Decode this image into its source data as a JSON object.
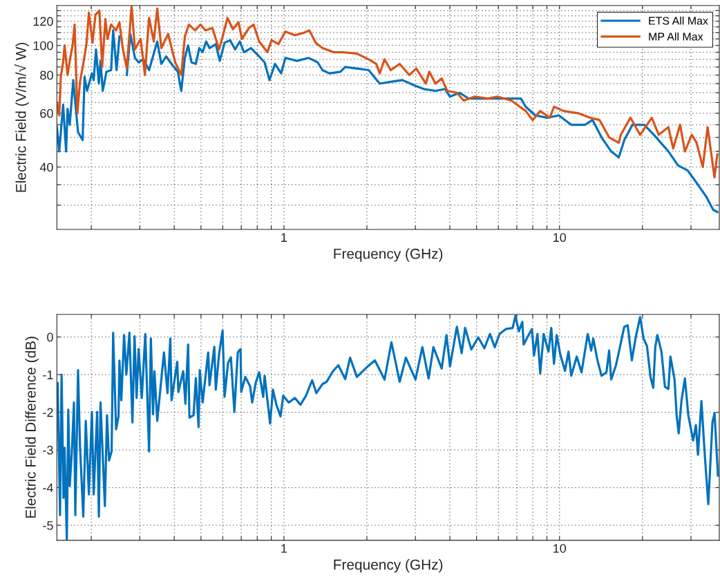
{
  "chart_data": [
    {
      "type": "line",
      "xlabel": "Frequency (GHz)",
      "ylabel": "Electric Field (V/m/√ W)",
      "log": "xy",
      "grid": true,
      "legend": "top right",
      "xlim": [
        0.15,
        38
      ],
      "ylim": [
        25,
        135
      ],
      "xticks": [
        {
          "value": 0.2,
          "label": null
        },
        {
          "value": 0.3,
          "label": null
        },
        {
          "value": 0.4,
          "label": null
        },
        {
          "value": 0.5,
          "label": null
        },
        {
          "value": 0.6,
          "label": null
        },
        {
          "value": 0.7,
          "label": null
        },
        {
          "value": 0.8,
          "label": null
        },
        {
          "value": 0.9,
          "label": null
        },
        1,
        {
          "value": 2,
          "label": null
        },
        {
          "value": 3,
          "label": null
        },
        {
          "value": 4,
          "label": null
        },
        {
          "value": 5,
          "label": null
        },
        {
          "value": 6,
          "label": null
        },
        {
          "value": 7,
          "label": null
        },
        {
          "value": 8,
          "label": null
        },
        {
          "value": 9,
          "label": null
        },
        10,
        {
          "value": 20,
          "label": null
        },
        {
          "value": 30,
          "label": null
        }
      ],
      "yticks": [
        {
          "value": 30,
          "label": null
        },
        {
          "value": 35,
          "label": null
        },
        40,
        {
          "value": 45,
          "label": null
        },
        {
          "value": 50,
          "label": null
        },
        {
          "value": 55,
          "label": null
        },
        60,
        {
          "value": 65,
          "label": null
        },
        {
          "value": 70,
          "label": null
        },
        {
          "value": 75,
          "label": null
        },
        80,
        {
          "value": 85,
          "label": null
        },
        {
          "value": 90,
          "label": null
        },
        {
          "value": 95,
          "label": null
        },
        100,
        {
          "value": 105,
          "label": null
        },
        {
          "value": 110,
          "label": null
        },
        {
          "value": 115,
          "label": null
        },
        120,
        {
          "value": 125,
          "label": null
        },
        {
          "value": 130,
          "label": null
        }
      ],
      "series": [
        {
          "name": "ETS All Max",
          "color": "#0072bd",
          "x": [
            0.15,
            0.153,
            0.158,
            0.162,
            0.164,
            0.167,
            0.172,
            0.179,
            0.186,
            0.189,
            0.193,
            0.201,
            0.204,
            0.208,
            0.213,
            0.216,
            0.22,
            0.227,
            0.236,
            0.24,
            0.247,
            0.253,
            0.262,
            0.269,
            0.277,
            0.288,
            0.297,
            0.309,
            0.324,
            0.347,
            0.359,
            0.374,
            0.391,
            0.412,
            0.424,
            0.437,
            0.449,
            0.462,
            0.479,
            0.493,
            0.507,
            0.522,
            0.537,
            0.566,
            0.585,
            0.609,
            0.638,
            0.665,
            0.692,
            0.716,
            0.759,
            0.804,
            0.851,
            0.886,
            0.928,
            0.977,
            1.012,
            1.116,
            1.23,
            1.326,
            1.38,
            1.463,
            1.603,
            1.669,
            1.84,
            2.03,
            2.226,
            2.441,
            2.692,
            2.968,
            3.217,
            3.548,
            3.846,
            4.004,
            4.34,
            4.677,
            5.496,
            6.42,
            7.244,
            7.542,
            8.175,
            9.016,
            9.943,
            11.03,
            12.37,
            13.18,
            14.21,
            15.4,
            16.41,
            17.18,
            18.4,
            20.3,
            22.0,
            24.84,
            26.92,
            29.17,
            31.44,
            34.08,
            36.1,
            37.37
          ],
          "values": [
            54,
            45,
            64,
            45,
            62,
            55,
            77,
            52,
            49,
            79,
            71,
            81,
            77,
            97,
            75,
            89,
            71,
            82,
            83,
            112,
            83,
            107,
            null,
            80,
            109,
            91,
            88,
            90,
            83,
            103,
            87,
            92,
            87,
            82,
            71,
            91,
            100,
            88,
            87,
            98,
            95,
            103,
            98,
            101,
            89,
            102,
            104,
            97,
            103,
            95,
            98,
            93,
            88,
            77,
            87,
            81,
            91,
            89,
            91,
            88,
            83,
            81,
            82,
            85,
            84,
            83,
            75,
            76,
            77,
            74,
            72,
            71,
            72,
            68,
            70,
            67,
            67,
            67,
            67,
            63,
            59,
            58,
            59,
            55,
            55,
            57,
            50,
            45,
            43,
            49,
            55,
            55,
            51,
            45,
            40.5,
            39,
            35.5,
            32,
            29,
            28.5
          ]
        },
        {
          "name": "MP All Max",
          "color": "#d95319",
          "x": [
            0.15,
            0.153,
            0.155,
            0.158,
            0.16,
            0.164,
            0.167,
            0.171,
            0.174,
            0.178,
            0.182,
            0.187,
            0.192,
            0.196,
            0.202,
            0.207,
            0.214,
            0.219,
            0.225,
            0.229,
            0.236,
            0.246,
            0.253,
            0.26,
            0.269,
            0.28,
            0.288,
            0.302,
            0.313,
            0.324,
            0.337,
            0.347,
            0.359,
            0.38,
            0.403,
            0.424,
            0.437,
            0.452,
            0.476,
            0.498,
            0.519,
            0.55,
            0.582,
            0.609,
            0.624,
            0.653,
            0.684,
            0.704,
            0.746,
            0.776,
            0.813,
            0.871,
            0.902,
            0.955,
            1.012,
            1.097,
            1.182,
            1.237,
            1.303,
            1.38,
            1.514,
            1.641,
            1.84,
            2.03,
            2.162,
            2.226,
            2.318,
            2.441,
            2.63,
            2.851,
            3.02,
            3.273,
            3.369,
            3.548,
            3.737,
            3.913,
            4.241,
            4.493,
            4.926,
            5.496,
            5.956,
            6.684,
            7.542,
            7.989,
            8.511,
            9.226,
            9.55,
            10.35,
            11.68,
            12.88,
            13.97,
            15.14,
            16.41,
            16.69,
            18.09,
            19.61,
            21.62,
            22.91,
            24.84,
            25.85,
            27.39,
            28.51,
            30.2,
            31.44,
            33.11,
            34.47,
            36.52,
            37.37
          ],
          "values": [
            65,
            59,
            79,
            88,
            100,
            80,
            89,
            100,
            117,
            60,
            76,
            87,
            101,
            128,
            102,
            126,
            130,
            85,
            122,
            105,
            117,
            112,
            119,
            98,
            84,
            134,
            97,
            105,
            80,
            123,
            103,
            132,
            98,
            109,
            88,
            80,
            107,
            117,
            112,
            117,
            112,
            114,
            97,
            113,
            123,
            113,
            119,
            105,
            114,
            117,
            103,
            95,
            104,
            101,
            111,
            108,
            110,
            112,
            102,
            98,
            95,
            95,
            94,
            90,
            87,
            81,
            90,
            83,
            87,
            80,
            84,
            75,
            82,
            75,
            78,
            71,
            70,
            66,
            68,
            67,
            68,
            66,
            61,
            57,
            61,
            58,
            63,
            61,
            60,
            58,
            57,
            50,
            48,
            51,
            58,
            51,
            58,
            51,
            54,
            46,
            55,
            45,
            51,
            48,
            40,
            54,
            37,
            44
          ]
        }
      ]
    },
    {
      "type": "line",
      "xlabel": "Frequency (GHz)",
      "ylabel": "Electric Field Difference (dB)",
      "log": "x",
      "grid": true,
      "xlim": [
        0.15,
        38
      ],
      "ylim": [
        -5.4,
        0.6
      ],
      "xticks": [
        {
          "value": 0.2,
          "label": null
        },
        {
          "value": 0.3,
          "label": null
        },
        {
          "value": 0.4,
          "label": null
        },
        {
          "value": 0.5,
          "label": null
        },
        {
          "value": 0.6,
          "label": null
        },
        {
          "value": 0.7,
          "label": null
        },
        {
          "value": 0.8,
          "label": null
        },
        {
          "value": 0.9,
          "label": null
        },
        1,
        {
          "value": 2,
          "label": null
        },
        {
          "value": 3,
          "label": null
        },
        {
          "value": 4,
          "label": null
        },
        {
          "value": 5,
          "label": null
        },
        {
          "value": 6,
          "label": null
        },
        {
          "value": 7,
          "label": null
        },
        {
          "value": 8,
          "label": null
        },
        {
          "value": 9,
          "label": null
        },
        10,
        {
          "value": 20,
          "label": null
        },
        {
          "value": 30,
          "label": null
        }
      ],
      "yticks": [
        -5,
        -4,
        -3,
        -2,
        -1,
        0
      ],
      "series": [
        {
          "color": "#0072bd",
          "x": [
            0.15,
            0.151,
            0.154,
            0.156,
            0.1585,
            0.16,
            0.163,
            0.165,
            0.167,
            0.17,
            0.173,
            0.175,
            0.179,
            0.182,
            0.187,
            0.191,
            0.196,
            0.201,
            0.204,
            0.21,
            0.213,
            0.216,
            0.224,
            0.228,
            0.232,
            0.237,
            0.24,
            0.246,
            0.251,
            0.253,
            0.257,
            0.263,
            0.268,
            0.275,
            0.282,
            0.287,
            0.292,
            0.297,
            0.305,
            0.314,
            0.324,
            0.329,
            0.335,
            0.339,
            0.347,
            0.367,
            0.378,
            0.387,
            0.391,
            0.41,
            0.414,
            0.431,
            0.439,
            0.449,
            0.454,
            0.47,
            0.479,
            0.49,
            0.495,
            0.507,
            0.531,
            0.537,
            0.559,
            0.566,
            0.582,
            0.599,
            0.609,
            0.627,
            0.642,
            0.661,
            0.68,
            0.696,
            0.7,
            0.724,
            0.754,
            0.767,
            0.79,
            0.813,
            0.841,
            0.851,
            0.891,
            0.912,
            0.939,
            0.972,
            0.994,
            1.041,
            1.097,
            1.148,
            1.202,
            1.266,
            1.311,
            1.38,
            1.429,
            1.505,
            1.576,
            1.669,
            1.738,
            1.84,
            1.995,
            2.138,
            2.318,
            2.455,
            2.63,
            2.77,
            3.002,
            3.18,
            3.35,
            3.487,
            3.737,
            3.89,
            4.004,
            4.241,
            4.416,
            4.545,
            4.786,
            5.07,
            5.34,
            5.591,
            5.82,
            6.06,
            6.383,
            6.761,
            6.919,
            7.12,
            7.328,
            7.413,
            7.718,
            7.943,
            8.081,
            8.317,
            8.511,
            8.76,
            9.121,
            9.333,
            9.55,
            9.773,
            10.06,
            10.47,
            10.78,
            11.03,
            11.55,
            12.02,
            12.66,
            13.03,
            13.26,
            13.73,
            14.21,
            14.8,
            15.14,
            15.4,
            16.03,
            16.5,
            17.18,
            17.68,
            18.3,
            18.94,
            19.61,
            20.18,
            20.77,
            21.38,
            21.88,
            22.26,
            22.65,
            23.44,
            24.13,
            24.84,
            25.27,
            26.15,
            26.61,
            27.07,
            27.7,
            28.51,
            29.34,
            30.54,
            31.26,
            31.8,
            32.73,
            33.69,
            34.67,
            35.89,
            36.52,
            37.58
          ],
          "values": [
            -1.59,
            -1.22,
            -4.73,
            -1.0,
            -4.27,
            -2.94,
            -5.4,
            -1.93,
            -3.96,
            -3.04,
            -1.74,
            -4.73,
            -0.88,
            -2.91,
            -4.77,
            -2.23,
            -4.18,
            -1.99,
            -4.18,
            -1.99,
            -4.77,
            -1.74,
            -4.49,
            -2.08,
            -3.28,
            -3.04,
            0.11,
            -2.45,
            -2.11,
            -0.63,
            -1.68,
            0.05,
            -1.0,
            0.11,
            -2.27,
            0.02,
            -1.62,
            -0.32,
            -1.62,
            0.08,
            -3.04,
            -0.04,
            -2.05,
            -0.91,
            -2.23,
            -0.41,
            -1.49,
            -0.04,
            -1.68,
            -0.66,
            -1.46,
            -0.91,
            -1.77,
            -0.2,
            -2.14,
            -2.08,
            -1.09,
            -2.39,
            -0.88,
            -1.74,
            -0.41,
            -1.28,
            -0.26,
            -1.4,
            -0.44,
            0.17,
            -1.59,
            -0.69,
            -0.54,
            -1.99,
            -0.41,
            -0.32,
            -1.46,
            -1.06,
            -1.31,
            -1.74,
            -1.22,
            -0.94,
            -1.59,
            -1.03,
            -2.3,
            -1.4,
            -1.8,
            -2.11,
            -1.56,
            -1.74,
            -1.62,
            -1.8,
            -1.56,
            -1.15,
            -1.49,
            -1.25,
            -1.19,
            -0.91,
            -0.75,
            -1.12,
            -0.55,
            -1.06,
            -0.81,
            -0.62,
            -1.13,
            -0.14,
            -1.19,
            -0.55,
            -1.13,
            -0.27,
            -1.1,
            -0.27,
            -0.84,
            0.05,
            -0.78,
            0.27,
            -0.43,
            0.24,
            -0.33,
            -0.01,
            -0.3,
            0.08,
            -0.27,
            0.08,
            0.21,
            0.24,
            0.56,
            0.15,
            0.4,
            -0.2,
            0.05,
            0.21,
            -0.49,
            0.08,
            -0.97,
            0.08,
            -0.39,
            0.24,
            -0.71,
            0.05,
            -0.46,
            -0.9,
            -0.39,
            -1.03,
            -0.52,
            -0.94,
            0.08,
            -0.36,
            -0.04,
            -0.62,
            -1.03,
            -0.94,
            -0.36,
            -1.13,
            -0.75,
            -0.33,
            0.27,
            0.31,
            -0.62,
            0.02,
            0.53,
            -0.04,
            -0.24,
            -1.06,
            -1.35,
            -0.27,
            0.05,
            -0.39,
            -1.32,
            -1.38,
            -0.52,
            -1.13,
            -2.08,
            -2.56,
            -1.7,
            -1.1,
            -2.08,
            -2.75,
            -2.34,
            -3.13,
            -1.7,
            -3.17,
            -4.44,
            -2.27,
            -2.02,
            -3.68
          ]
        }
      ]
    }
  ]
}
